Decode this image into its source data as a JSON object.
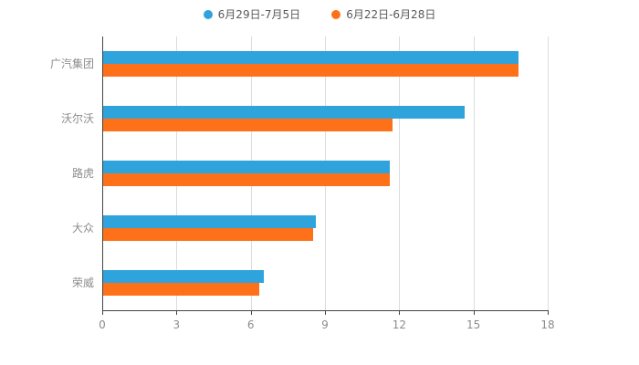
{
  "chart_data": {
    "type": "bar",
    "orientation": "horizontal",
    "title": "",
    "xlabel": "",
    "ylabel": "",
    "categories": [
      "广汽集团",
      "沃尔沃",
      "路虎",
      "大众",
      "荣威"
    ],
    "series": [
      {
        "name": "6月29日-7月5日",
        "color": "#2EA3DC",
        "values": [
          16.8,
          14.6,
          11.6,
          8.6,
          6.5
        ]
      },
      {
        "name": "6月22日-6月28日",
        "color": "#FF7119",
        "values": [
          16.8,
          11.7,
          11.6,
          8.5,
          6.3
        ]
      }
    ],
    "xlim": [
      0,
      18
    ],
    "xticks": [
      0,
      3,
      6,
      9,
      12,
      15,
      18
    ],
    "grid": true,
    "legend_position": "top",
    "colors": {
      "axis": "#444444",
      "gridline": "#dcdcdc",
      "tick_label": "#8c8c8c",
      "category_label": "#8c8c8c",
      "legend_text": "#595959",
      "background": "#ffffff"
    }
  }
}
